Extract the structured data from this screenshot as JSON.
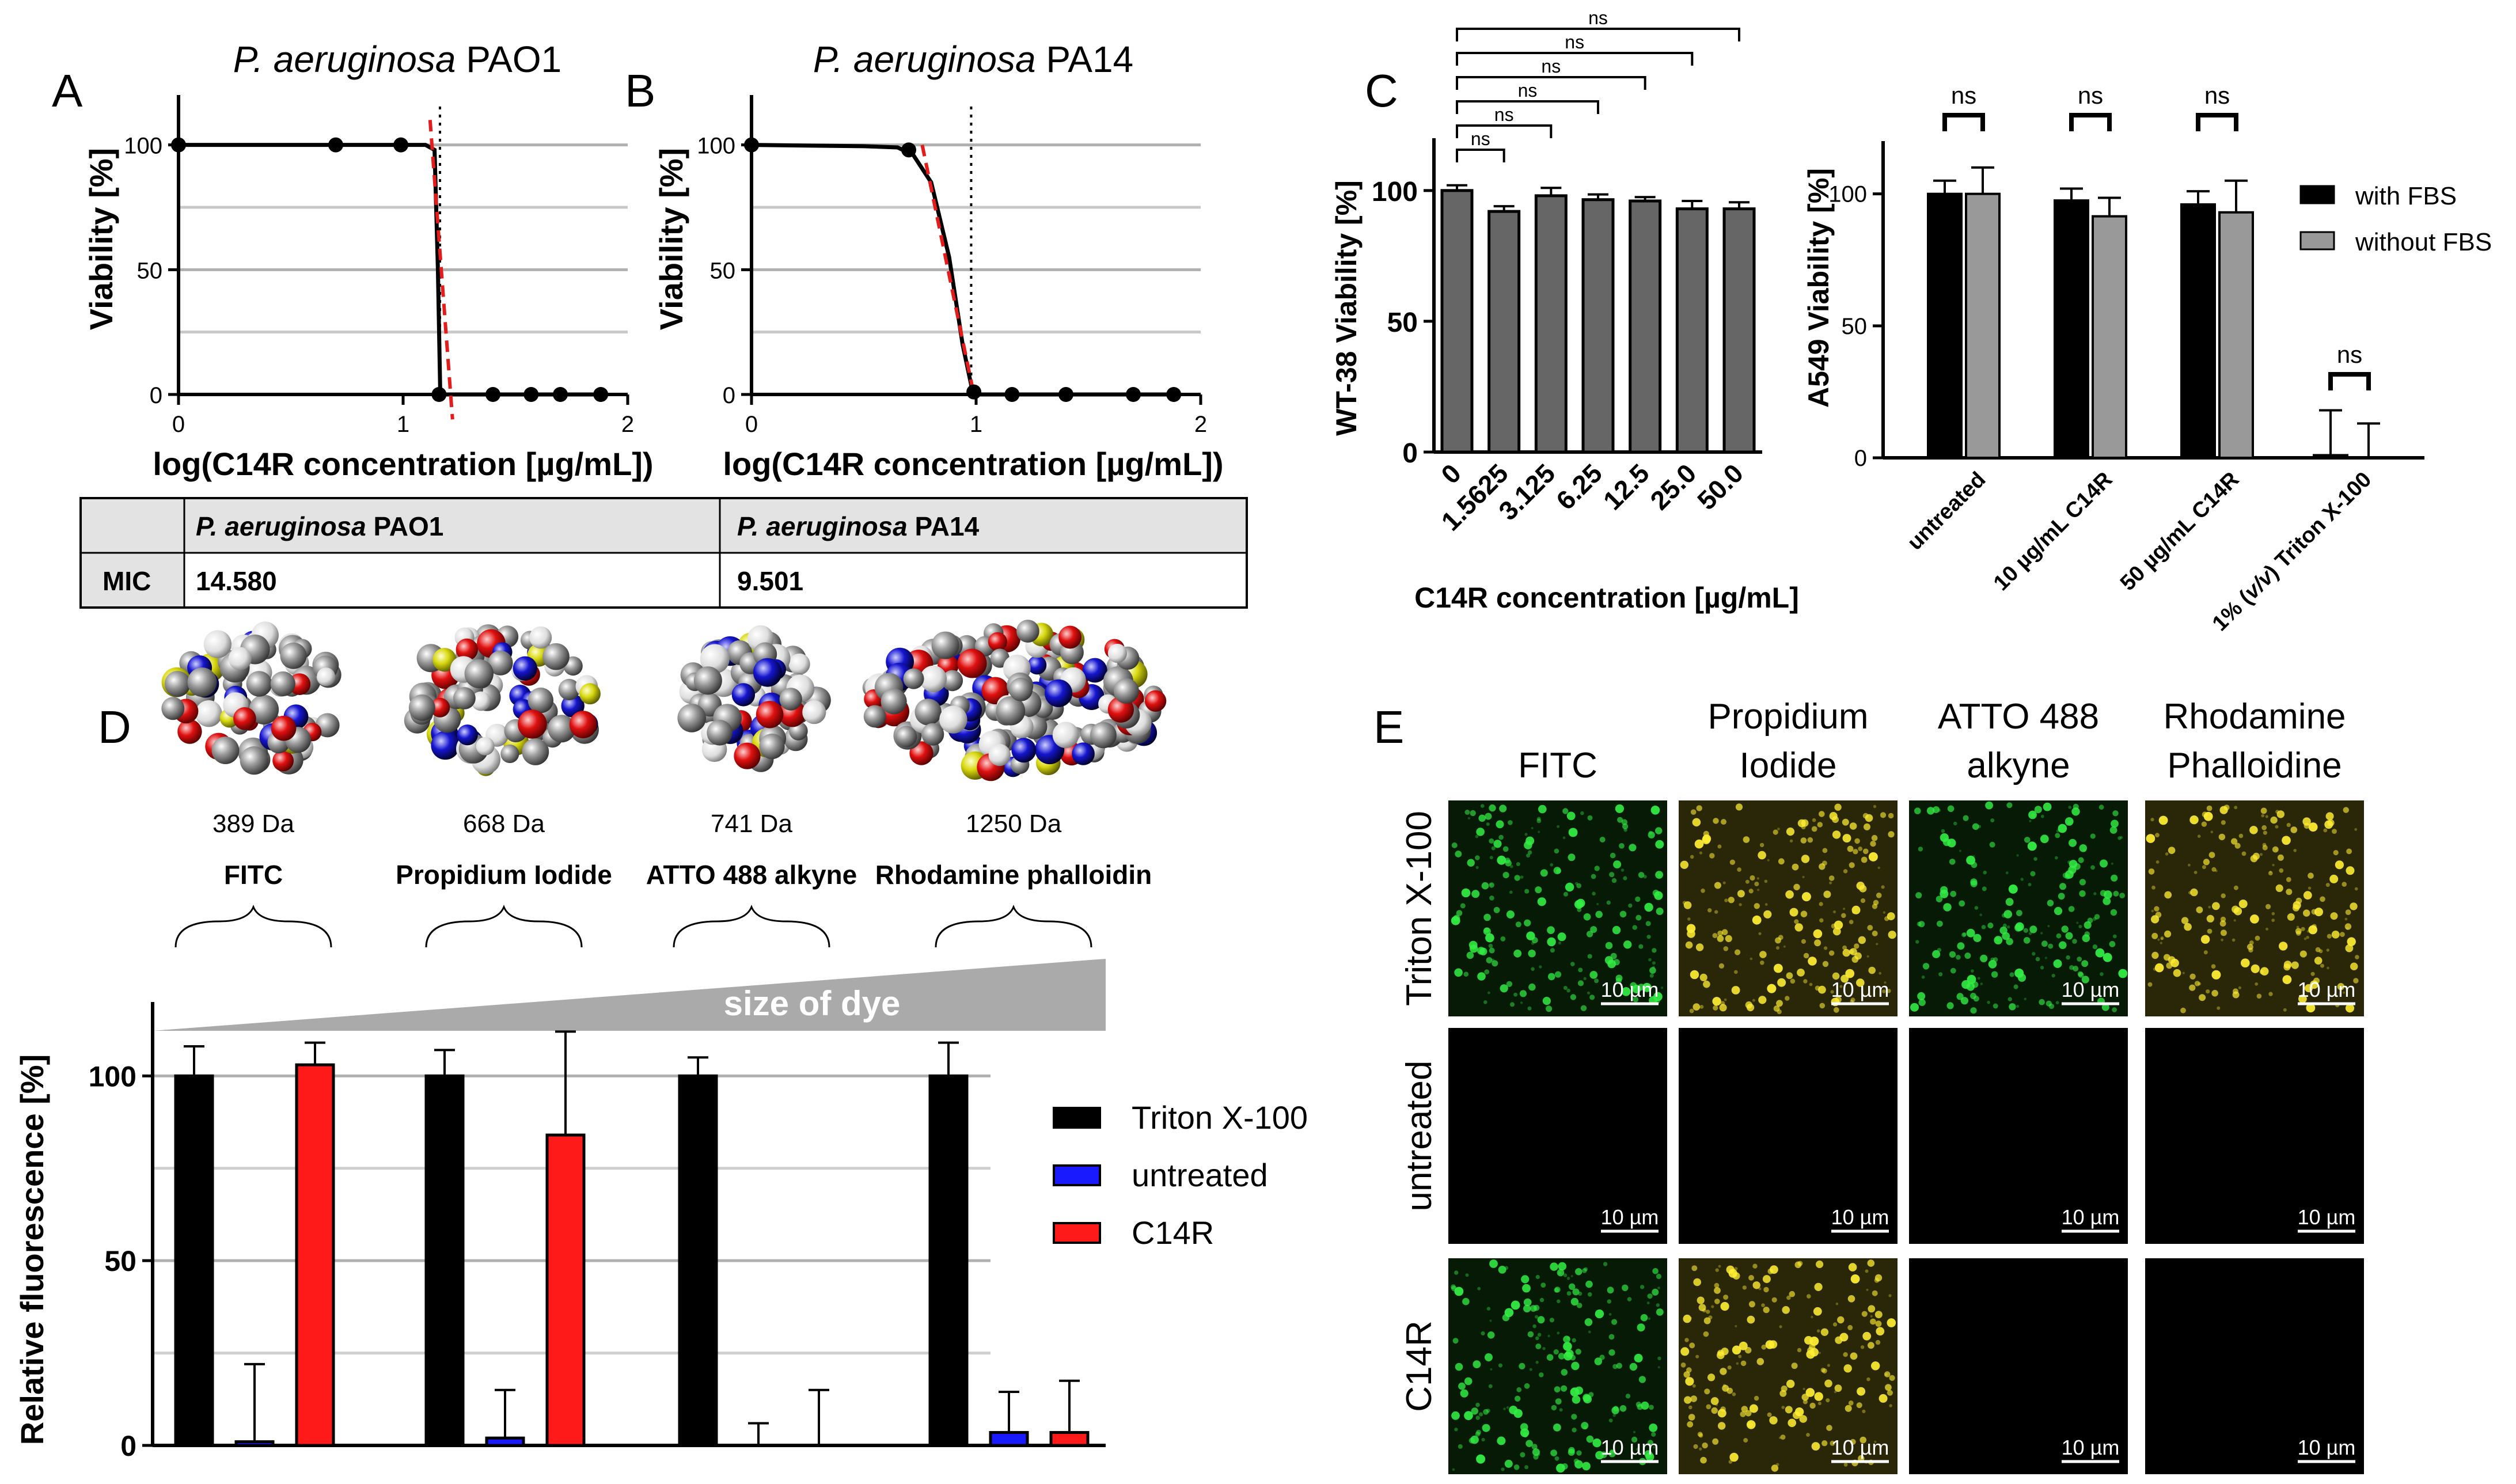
{
  "panel_letters": {
    "A": "A",
    "B": "B",
    "C": "C",
    "D": "D",
    "E": "E"
  },
  "chart_data": [
    {
      "id": "A",
      "type": "line",
      "title": "P. aeruginosa PAO1",
      "title_italic": "P. aeruginosa",
      "title_rest": " PAO1",
      "xlabel": "log(C14R concentration [µg/mL])",
      "ylabel": "Viability [%]",
      "xlim": [
        0,
        2
      ],
      "ylim": [
        0,
        120
      ],
      "xticks": [
        "0",
        "1",
        "2"
      ],
      "yticks": [
        "0",
        "50",
        "100"
      ],
      "points": [
        [
          0,
          100
        ],
        [
          0.7,
          100
        ],
        [
          0.99,
          100
        ],
        [
          1.16,
          0
        ],
        [
          1.4,
          0
        ],
        [
          1.57,
          0
        ],
        [
          1.7,
          0
        ],
        [
          1.88,
          0
        ]
      ],
      "curve": [
        [
          0,
          100
        ],
        [
          0.99,
          100
        ],
        [
          1.1,
          100
        ],
        [
          1.14,
          98
        ],
        [
          1.155,
          50
        ],
        [
          1.165,
          2
        ],
        [
          1.18,
          0
        ],
        [
          1.88,
          0
        ]
      ],
      "mic_log": 1.164,
      "slope_line": [
        [
          1.12,
          110
        ],
        [
          1.22,
          -10
        ]
      ],
      "legend": "none",
      "grid": "horizontal"
    },
    {
      "id": "B",
      "type": "line",
      "title": "P. aeruginosa PA14",
      "title_italic": "P. aeruginosa",
      "title_rest": " PA14",
      "xlabel": "log(C14R concentration [µg/mL])",
      "ylabel": "Viability [%]",
      "xlim": [
        0,
        2
      ],
      "ylim": [
        0,
        120
      ],
      "xticks": [
        "0",
        "1",
        "2"
      ],
      "yticks": [
        "0",
        "50",
        "100"
      ],
      "points": [
        [
          0,
          100
        ],
        [
          0.7,
          98
        ],
        [
          0.99,
          1
        ],
        [
          1.16,
          0
        ],
        [
          1.4,
          0
        ],
        [
          1.7,
          0
        ],
        [
          1.88,
          0
        ]
      ],
      "curve": [
        [
          0,
          100
        ],
        [
          0.5,
          99.5
        ],
        [
          0.65,
          99
        ],
        [
          0.72,
          96
        ],
        [
          0.8,
          85
        ],
        [
          0.88,
          55
        ],
        [
          0.94,
          20
        ],
        [
          0.98,
          3
        ],
        [
          1.02,
          0
        ],
        [
          1.88,
          0
        ]
      ],
      "mic_log": 0.978,
      "slope_line": [
        [
          0.76,
          100
        ],
        [
          0.99,
          0
        ]
      ],
      "legend": "none",
      "grid": "horizontal"
    },
    {
      "id": "C1",
      "type": "bar",
      "xlabel": "C14R concentration [µg/mL]",
      "ylabel": "WT-38 Viability [%]",
      "categories": [
        "0",
        "1.5625",
        "3.125",
        "6.25",
        "12.5",
        "25.0",
        "50.0"
      ],
      "values": [
        100,
        92,
        98,
        96.5,
        96,
        93,
        93
      ],
      "errors": [
        2,
        2,
        3,
        2,
        1.5,
        3,
        2.5
      ],
      "ylim": [
        0,
        120
      ],
      "yticks": [
        "0",
        "50",
        "100"
      ],
      "significance": [
        {
          "from": 0,
          "to": 1,
          "label": "ns"
        },
        {
          "from": 0,
          "to": 2,
          "label": "ns"
        },
        {
          "from": 0,
          "to": 3,
          "label": "ns"
        },
        {
          "from": 0,
          "to": 4,
          "label": "ns"
        },
        {
          "from": 0,
          "to": 5,
          "label": "ns"
        },
        {
          "from": 0,
          "to": 6,
          "label": "ns"
        }
      ],
      "legend": "none"
    },
    {
      "id": "C2",
      "type": "bar",
      "ylabel": "A549 Viability [%]",
      "categories": [
        "untreated",
        "10 µg/mL C14R",
        "50 µg/mL C14R",
        "1% (v/v) Triton X-100"
      ],
      "series": [
        {
          "name": "with FBS",
          "color": "#000000",
          "values": [
            100,
            97.5,
            96,
            1
          ],
          "errors": [
            5,
            4.5,
            5,
            17
          ]
        },
        {
          "name": "without FBS",
          "color": "#999999",
          "values": [
            100,
            91.5,
            93,
            0
          ],
          "errors": [
            10,
            7,
            12,
            13
          ]
        }
      ],
      "ylim": [
        0,
        120
      ],
      "yticks": [
        "0",
        "50",
        "100"
      ],
      "significance_label": "ns",
      "legend": "top-right"
    },
    {
      "id": "D",
      "type": "bar",
      "ylabel": "Relative fluorescence [%]",
      "categories": [
        "FITC",
        "Propidium  Iodide",
        "ATTO 488 alkyne",
        "Rhodamine  phalloidin"
      ],
      "masses": [
        "389 Da",
        "668 Da",
        "741 Da",
        "1250 Da"
      ],
      "size_label": "size of dye",
      "series": [
        {
          "name": "Triton X-100",
          "color": "#000000",
          "values": [
            100,
            100,
            100,
            100
          ],
          "errors": [
            8,
            7,
            5,
            9
          ]
        },
        {
          "name": "untreated",
          "color": "#1a1aff",
          "values": [
            1,
            2,
            0,
            3.5
          ],
          "errors": [
            21,
            13,
            6,
            11
          ]
        },
        {
          "name": "C14R",
          "color": "#ff1a1a",
          "values": [
            103,
            84,
            0,
            3.5
          ],
          "errors": [
            6,
            28,
            15,
            14
          ]
        }
      ],
      "ylim": [
        0,
        120
      ],
      "yticks": [
        "0",
        "50",
        "100"
      ],
      "legend": "right"
    }
  ],
  "mic_table": {
    "col1_italic": "P. aeruginosa",
    "col1_rest": " PAO1",
    "col2_italic": "P. aeruginosa",
    "col2_rest": " PA14",
    "row_label": "MIC",
    "val1": "14.580",
    "val2": "9.501"
  },
  "micrographs": {
    "columns": [
      "FITC",
      "Propidium\nIodide",
      "ATTO 488\nalkyne",
      "Rhodamine\nPhalloidine"
    ],
    "rows": [
      "Triton X-100",
      "untreated",
      "C14R"
    ],
    "scale_bar": "10 µm",
    "cells": [
      [
        "green",
        "yellow",
        "green",
        "yellow"
      ],
      [
        "black",
        "black",
        "black",
        "black"
      ],
      [
        "green",
        "yellow",
        "black",
        "black"
      ]
    ],
    "colors": {
      "green": "#33ee44",
      "yellow": "#ffee33",
      "background": "#000000"
    }
  }
}
